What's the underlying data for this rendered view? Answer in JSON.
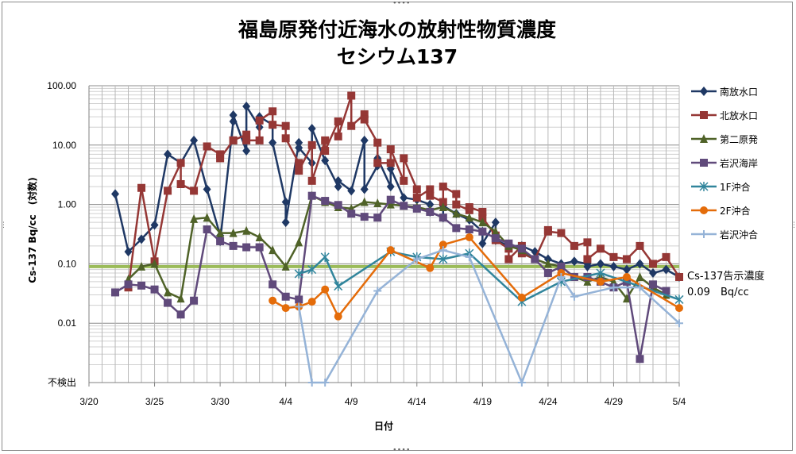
{
  "chart_data": {
    "type": "line",
    "title": "福島原発付近海水の放射性物質濃度",
    "subtitle": "セシウム137",
    "xlabel": "日付",
    "ylabel": "Cs-137 Bq/cc　(対数)",
    "y_scale": "log",
    "ylim": [
      0.001,
      100
    ],
    "y_ticks": [
      "100.00",
      "10.00",
      "1.00",
      "0.10",
      "0.01",
      "不検出"
    ],
    "x_ticks": [
      "3/20",
      "3/25",
      "3/30",
      "4/4",
      "4/9",
      "4/14",
      "4/19",
      "4/24",
      "4/29",
      "5/4"
    ],
    "x_start": "3/20",
    "xlim": [
      "3/20",
      "5/4"
    ],
    "grid": true,
    "legend_position": "right",
    "annotation": {
      "line1": "Cs-137告示濃度",
      "line2": "0.09　Bq/cc",
      "value": 0.09,
      "color": "#9bbb59"
    },
    "series": [
      {
        "name": "南放水口",
        "color": "#1f3864",
        "marker": "diamond",
        "points": [
          [
            "3/22",
            1.5
          ],
          [
            "3/23",
            0.16
          ],
          [
            "3/24",
            0.26
          ],
          [
            "3/25",
            0.45
          ],
          [
            "3/26",
            7
          ],
          [
            "3/27",
            5
          ],
          [
            "3/28",
            12
          ],
          [
            "3/29",
            1.8
          ],
          [
            "3/30",
            0.3
          ],
          [
            "3/30",
            0.24
          ],
          [
            "3/31",
            25
          ],
          [
            "3/31",
            32
          ],
          [
            "4/1",
            8
          ],
          [
            "4/1",
            45
          ],
          [
            "4/2",
            20
          ],
          [
            "4/2",
            30
          ],
          [
            "4/3",
            22
          ],
          [
            "4/3",
            11
          ],
          [
            "4/4",
            1.1
          ],
          [
            "4/4",
            0.5
          ],
          [
            "4/5",
            11
          ],
          [
            "4/5",
            9
          ],
          [
            "4/6",
            5
          ],
          [
            "4/6",
            19
          ],
          [
            "4/7",
            5.5
          ],
          [
            "4/8",
            2
          ],
          [
            "4/8",
            2.5
          ],
          [
            "4/9",
            1.7
          ],
          [
            "4/10",
            12
          ],
          [
            "4/10",
            1.8
          ],
          [
            "4/11",
            4.5
          ],
          [
            "4/11",
            6
          ],
          [
            "4/12",
            2
          ],
          [
            "4/12",
            4
          ],
          [
            "4/13",
            1.3
          ],
          [
            "4/14",
            1.2
          ],
          [
            "4/15",
            1
          ],
          [
            "4/15",
            0.75
          ],
          [
            "4/16",
            0.6
          ],
          [
            "4/16",
            0.95
          ],
          [
            "4/17",
            0.7
          ],
          [
            "4/18",
            0.55
          ],
          [
            "4/19",
            0.35
          ],
          [
            "4/19",
            0.22
          ],
          [
            "4/20",
            0.5
          ],
          [
            "4/20",
            0.25
          ],
          [
            "4/21",
            0.2
          ],
          [
            "4/22",
            0.2
          ],
          [
            "4/23",
            0.16
          ],
          [
            "4/24",
            0.12
          ],
          [
            "4/25",
            0.1
          ],
          [
            "4/26",
            0.11
          ],
          [
            "4/27",
            0.1
          ],
          [
            "4/27",
            0.09
          ],
          [
            "4/28",
            0.1
          ],
          [
            "4/29",
            0.09
          ],
          [
            "4/30",
            0.08
          ],
          [
            "5/1",
            0.1
          ],
          [
            "5/2",
            0.07
          ],
          [
            "5/3",
            0.08
          ],
          [
            "5/4",
            0.06
          ]
        ]
      },
      {
        "name": "北放水口",
        "color": "#953735",
        "marker": "square",
        "points": [
          [
            "3/23",
            0.04
          ],
          [
            "3/24",
            1.9
          ],
          [
            "3/25",
            0.11
          ],
          [
            "3/26",
            1.7
          ],
          [
            "3/27",
            5
          ],
          [
            "3/27",
            2.2
          ],
          [
            "3/28",
            1.7
          ],
          [
            "3/29",
            9.5
          ],
          [
            "3/30",
            7
          ],
          [
            "3/30",
            6
          ],
          [
            "3/31",
            12
          ],
          [
            "3/31",
            12
          ],
          [
            "4/1",
            15
          ],
          [
            "4/1",
            12
          ],
          [
            "4/2",
            12
          ],
          [
            "4/2",
            26
          ],
          [
            "4/3",
            37
          ],
          [
            "4/3",
            22
          ],
          [
            "4/4",
            21
          ],
          [
            "4/4",
            13
          ],
          [
            "4/5",
            5
          ],
          [
            "4/5",
            3.7
          ],
          [
            "4/6",
            10
          ],
          [
            "4/6",
            2.5
          ],
          [
            "4/7",
            12
          ],
          [
            "4/7",
            8
          ],
          [
            "4/8",
            25
          ],
          [
            "4/8",
            14
          ],
          [
            "4/9",
            68
          ],
          [
            "4/9",
            21
          ],
          [
            "4/10",
            33
          ],
          [
            "4/10",
            27
          ],
          [
            "4/11",
            11
          ],
          [
            "4/11",
            5
          ],
          [
            "4/12",
            5
          ],
          [
            "4/12",
            8.5
          ],
          [
            "4/13",
            2.5
          ],
          [
            "4/13",
            6
          ],
          [
            "4/14",
            1.8
          ],
          [
            "4/14",
            1.3
          ],
          [
            "4/15",
            1.8
          ],
          [
            "4/15",
            1.4
          ],
          [
            "4/16",
            1.1
          ],
          [
            "4/16",
            2
          ],
          [
            "4/17",
            1.5
          ],
          [
            "4/17",
            1
          ],
          [
            "4/18",
            0.8
          ],
          [
            "4/18",
            0.9
          ],
          [
            "4/19",
            0.75
          ],
          [
            "4/19",
            0.6
          ],
          [
            "4/20",
            0.3
          ],
          [
            "4/20",
            0.25
          ],
          [
            "4/21",
            0.18
          ],
          [
            "4/21",
            0.12
          ],
          [
            "4/22",
            0.2
          ],
          [
            "4/22",
            0.15
          ],
          [
            "4/23",
            0.12
          ],
          [
            "4/24",
            0.37
          ],
          [
            "4/24",
            0.35
          ],
          [
            "4/25",
            0.33
          ],
          [
            "4/26",
            0.2
          ],
          [
            "4/27",
            0.23
          ],
          [
            "4/27",
            0.12
          ],
          [
            "4/28",
            0.18
          ],
          [
            "4/29",
            0.13
          ],
          [
            "4/30",
            0.12
          ],
          [
            "5/1",
            0.2
          ],
          [
            "5/2",
            0.1
          ],
          [
            "5/3",
            0.13
          ],
          [
            "5/4",
            0.06
          ]
        ]
      },
      {
        "name": "第二原発",
        "color": "#4f6228",
        "marker": "triangle",
        "points": [
          [
            "3/23",
            0.055
          ],
          [
            "3/24",
            0.09
          ],
          [
            "3/25",
            0.1
          ],
          [
            "3/26",
            0.033
          ],
          [
            "3/27",
            0.026
          ],
          [
            "3/28",
            0.57
          ],
          [
            "3/29",
            0.6
          ],
          [
            "3/30",
            0.33
          ],
          [
            "3/31",
            0.33
          ],
          [
            "4/1",
            0.36
          ],
          [
            "4/2",
            0.28
          ],
          [
            "4/3",
            0.17
          ],
          [
            "4/4",
            0.09
          ],
          [
            "4/5",
            0.23
          ],
          [
            "4/6",
            1.4
          ],
          [
            "4/7",
            1.1
          ],
          [
            "4/8",
            0.9
          ],
          [
            "4/9",
            0.85
          ],
          [
            "4/10",
            1.1
          ],
          [
            "4/11",
            1.05
          ],
          [
            "4/12",
            1
          ],
          [
            "4/13",
            0.95
          ],
          [
            "4/14",
            0.9
          ],
          [
            "4/15",
            0.8
          ],
          [
            "4/16",
            0.9
          ],
          [
            "4/17",
            0.7
          ],
          [
            "4/18",
            0.6
          ],
          [
            "4/19",
            0.5
          ],
          [
            "4/20",
            0.35
          ],
          [
            "4/21",
            0.2
          ],
          [
            "4/22",
            0.17
          ],
          [
            "4/23",
            0.12
          ],
          [
            "4/24",
            0.1
          ],
          [
            "4/25",
            0.09
          ],
          [
            "4/26",
            0.06
          ],
          [
            "4/27",
            0.05
          ],
          [
            "4/28",
            0.06
          ],
          [
            "4/29",
            0.05
          ],
          [
            "4/30",
            0.026
          ],
          [
            "5/1",
            0.06
          ],
          [
            "5/2",
            0.04
          ],
          [
            "5/3",
            0.03
          ]
        ]
      },
      {
        "name": "岩沢海岸",
        "color": "#604a7b",
        "marker": "square",
        "points": [
          [
            "3/22",
            0.033
          ],
          [
            "3/23",
            0.045
          ],
          [
            "3/24",
            0.043
          ],
          [
            "3/25",
            0.037
          ],
          [
            "3/26",
            0.022
          ],
          [
            "3/27",
            0.014
          ],
          [
            "3/28",
            0.024
          ],
          [
            "3/29",
            0.38
          ],
          [
            "3/30",
            0.24
          ],
          [
            "3/31",
            0.2
          ],
          [
            "4/1",
            0.19
          ],
          [
            "4/2",
            0.19
          ],
          [
            "4/3",
            0.045
          ],
          [
            "4/4",
            0.028
          ],
          [
            "4/5",
            0.025
          ],
          [
            "4/6",
            1.4
          ],
          [
            "4/7",
            1.15
          ],
          [
            "4/8",
            0.98
          ],
          [
            "4/9",
            0.7
          ],
          [
            "4/10",
            0.62
          ],
          [
            "4/11",
            0.6
          ],
          [
            "4/12",
            1.2
          ],
          [
            "4/13",
            0.95
          ],
          [
            "4/14",
            0.85
          ],
          [
            "4/15",
            0.75
          ],
          [
            "4/16",
            0.6
          ],
          [
            "4/17",
            0.4
          ],
          [
            "4/18",
            0.38
          ],
          [
            "4/19",
            0.35
          ],
          [
            "4/20",
            0.27
          ],
          [
            "4/21",
            0.22
          ],
          [
            "4/22",
            0.18
          ],
          [
            "4/23",
            0.12
          ],
          [
            "4/24",
            0.07
          ],
          [
            "4/25",
            0.09
          ],
          [
            "4/26",
            0.06
          ],
          [
            "4/27",
            0.06
          ],
          [
            "4/28",
            0.05
          ],
          [
            "4/29",
            0.04
          ],
          [
            "4/30",
            0.05
          ],
          [
            "5/1",
            0.0025
          ],
          [
            "5/2",
            0.045
          ],
          [
            "5/3",
            0.035
          ]
        ]
      },
      {
        "name": "1F沖合",
        "color": "#31859c",
        "marker": "star",
        "points": [
          [
            "4/5",
            0.068
          ],
          [
            "4/6",
            0.08
          ],
          [
            "4/7",
            0.13
          ],
          [
            "4/8",
            0.042
          ],
          [
            "4/12",
            0.16
          ],
          [
            "4/14",
            0.13
          ],
          [
            "4/16",
            0.12
          ],
          [
            "4/18",
            0.15
          ],
          [
            "4/22",
            0.023
          ],
          [
            "4/25",
            0.05
          ],
          [
            "4/28",
            0.07
          ],
          [
            "5/4",
            0.025
          ]
        ]
      },
      {
        "name": "2F沖合",
        "color": "#e46c0a",
        "marker": "circle",
        "points": [
          [
            "4/3",
            0.024
          ],
          [
            "4/4",
            0.018
          ],
          [
            "4/5",
            0.019
          ],
          [
            "4/6",
            0.023
          ],
          [
            "4/7",
            0.037
          ],
          [
            "4/8",
            0.013
          ],
          [
            "4/12",
            0.17
          ],
          [
            "4/15",
            0.085
          ],
          [
            "4/16",
            0.21
          ],
          [
            "4/18",
            0.28
          ],
          [
            "4/22",
            0.027
          ],
          [
            "4/25",
            0.07
          ],
          [
            "4/28",
            0.05
          ],
          [
            "4/30",
            0.06
          ],
          [
            "5/4",
            0.018
          ]
        ]
      },
      {
        "name": "岩沢沖合",
        "color": "#95b3d7",
        "marker": "plus",
        "points": [
          [
            "4/5",
            0.019
          ],
          [
            "4/6",
            0.001
          ],
          [
            "4/7",
            0.001
          ],
          [
            "4/11",
            0.035
          ],
          [
            "4/14",
            0.12
          ],
          [
            "4/16",
            0.17
          ],
          [
            "4/18",
            0.13
          ],
          [
            "4/22",
            0.001
          ],
          [
            "4/25",
            0.06
          ],
          [
            "4/26",
            0.028
          ],
          [
            "4/29",
            0.04
          ],
          [
            "5/1",
            0.04
          ],
          [
            "5/4",
            0.01
          ]
        ]
      }
    ]
  }
}
